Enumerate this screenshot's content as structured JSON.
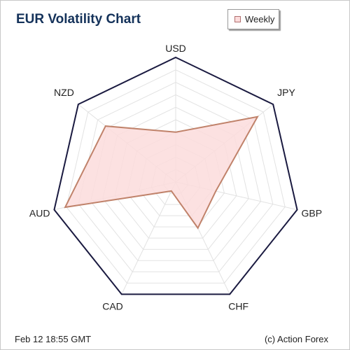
{
  "page": {
    "footer_left": "Feb 12  18:55 GMT",
    "footer_right": "(c) Action Forex"
  },
  "colors": {
    "title": "#14325a",
    "outline": "#1a1a40",
    "grid": "#e2e2e2",
    "series_fill": "#fcdcdc",
    "series_stroke": "#c0826a"
  },
  "chart_data": {
    "type": "radar",
    "title": "EUR Volatility Chart",
    "categories": [
      "USD",
      "JPY",
      "GBP",
      "CHF",
      "CAD",
      "AUD",
      "NZD"
    ],
    "series": [
      {
        "name": "Weekly",
        "values": [
          0.4,
          0.84,
          0.33,
          0.41,
          0.08,
          0.91,
          0.72
        ]
      }
    ],
    "rlim": [
      0,
      1
    ],
    "grid_levels": 10,
    "grid": true,
    "legend_position": "top-right"
  }
}
